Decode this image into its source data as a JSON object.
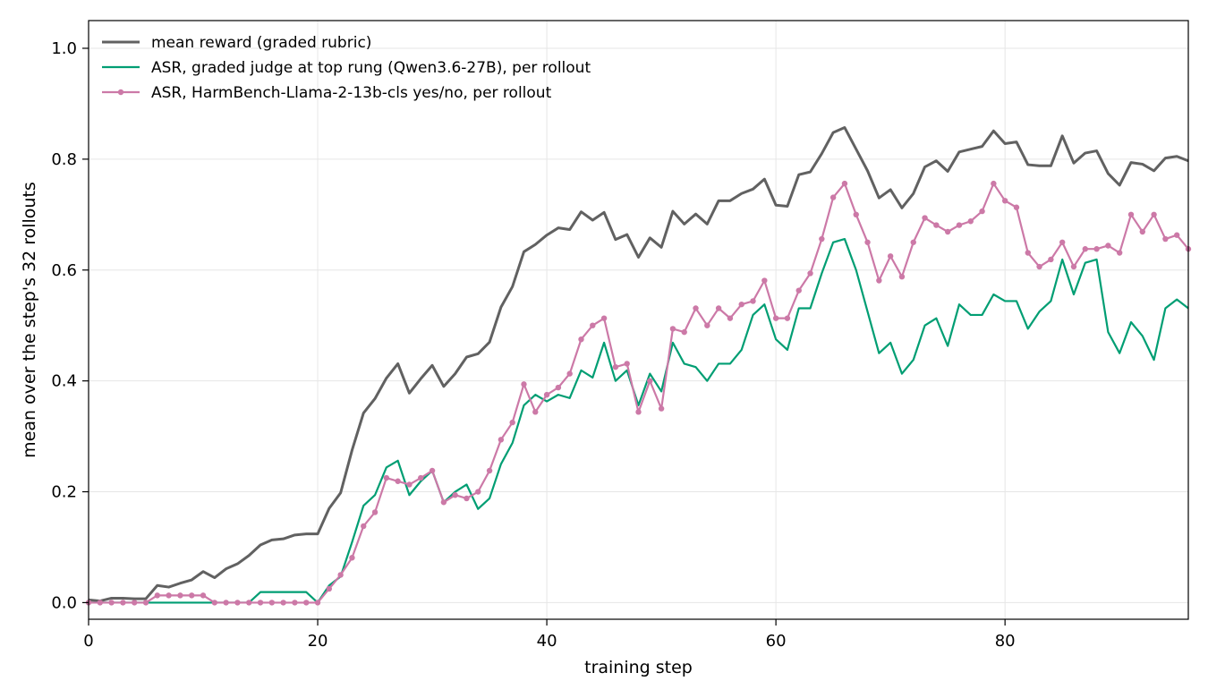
{
  "chart_data": {
    "type": "line",
    "title": "",
    "xlabel": "training step",
    "ylabel": "mean over the step's 32 rollouts",
    "xlim": [
      0,
      96
    ],
    "ylim": [
      -0.03,
      1.05
    ],
    "xticks": [
      0,
      20,
      40,
      60,
      80
    ],
    "yticks": [
      0.0,
      0.2,
      0.4,
      0.6,
      0.8,
      1.0
    ],
    "grid": true,
    "legend_position": "top-left",
    "series": [
      {
        "name": "mean reward (graded rubric)",
        "color": "#616161",
        "style": "solid",
        "marker": false,
        "x": [
          0,
          1,
          2,
          3,
          4,
          5,
          6,
          7,
          8,
          9,
          10,
          11,
          12,
          13,
          14,
          15,
          16,
          17,
          18,
          19,
          20,
          21,
          22,
          23,
          24,
          25,
          26,
          27,
          28,
          29,
          30,
          31,
          32,
          33,
          34,
          35,
          36,
          37,
          38,
          39,
          40,
          41,
          42,
          43,
          44,
          45,
          46,
          47,
          48,
          49,
          50,
          51,
          52,
          53,
          54,
          55,
          56,
          57,
          58,
          59,
          60,
          61,
          62,
          63,
          64,
          65,
          66,
          67,
          68,
          69,
          70,
          71,
          72,
          73,
          74,
          75,
          76,
          77,
          78,
          79,
          80,
          81,
          82,
          83,
          84,
          85,
          86,
          87,
          88,
          89,
          90,
          91,
          92,
          93,
          94,
          95,
          96
        ],
        "values": [
          0.005,
          0.003,
          0.008,
          0.008,
          0.007,
          0.007,
          0.031,
          0.028,
          0.035,
          0.041,
          0.056,
          0.045,
          0.061,
          0.07,
          0.085,
          0.104,
          0.113,
          0.115,
          0.122,
          0.124,
          0.124,
          0.17,
          0.198,
          0.275,
          0.342,
          0.368,
          0.405,
          0.431,
          0.378,
          0.404,
          0.428,
          0.39,
          0.413,
          0.443,
          0.449,
          0.47,
          0.533,
          0.57,
          0.633,
          0.646,
          0.663,
          0.676,
          0.673,
          0.705,
          0.69,
          0.704,
          0.655,
          0.664,
          0.623,
          0.658,
          0.641,
          0.706,
          0.683,
          0.701,
          0.683,
          0.725,
          0.725,
          0.738,
          0.746,
          0.764,
          0.717,
          0.715,
          0.772,
          0.777,
          0.81,
          0.848,
          0.857,
          0.818,
          0.779,
          0.73,
          0.745,
          0.712,
          0.738,
          0.786,
          0.797,
          0.778,
          0.813,
          0.818,
          0.823,
          0.851,
          0.828,
          0.831,
          0.79,
          0.788,
          0.788,
          0.842,
          0.793,
          0.811,
          0.815,
          0.774,
          0.753,
          0.794,
          0.791,
          0.779,
          0.802,
          0.805,
          0.797
        ]
      },
      {
        "name": "ASR, graded judge at top rung (Qwen3.6-27B), per rollout",
        "color": "#009e73",
        "style": "solid",
        "marker": false,
        "x": [
          0,
          1,
          2,
          3,
          4,
          5,
          6,
          7,
          8,
          9,
          10,
          11,
          12,
          13,
          14,
          15,
          16,
          17,
          18,
          19,
          20,
          21,
          22,
          23,
          24,
          25,
          26,
          27,
          28,
          29,
          30,
          31,
          32,
          33,
          34,
          35,
          36,
          37,
          38,
          39,
          40,
          41,
          42,
          43,
          44,
          45,
          46,
          47,
          48,
          49,
          50,
          51,
          52,
          53,
          54,
          55,
          56,
          57,
          58,
          59,
          60,
          61,
          62,
          63,
          64,
          65,
          66,
          67,
          68,
          69,
          70,
          71,
          72,
          73,
          74,
          75,
          76,
          77,
          78,
          79,
          80,
          81,
          82,
          83,
          84,
          85,
          86,
          87,
          88,
          89,
          90,
          91,
          92,
          93,
          94,
          95,
          96
        ],
        "values": [
          0.0,
          0.0,
          0.0,
          0.0,
          0.0,
          0.0,
          0.0,
          0.0,
          0.0,
          0.0,
          0.0,
          0.0,
          0.0,
          0.0,
          0.0,
          0.019,
          0.019,
          0.019,
          0.019,
          0.019,
          0.0,
          0.031,
          0.047,
          0.109,
          0.175,
          0.194,
          0.244,
          0.256,
          0.194,
          0.219,
          0.238,
          0.181,
          0.2,
          0.213,
          0.169,
          0.188,
          0.25,
          0.288,
          0.356,
          0.375,
          0.363,
          0.375,
          0.369,
          0.419,
          0.406,
          0.469,
          0.4,
          0.419,
          0.356,
          0.413,
          0.381,
          0.469,
          0.431,
          0.425,
          0.4,
          0.431,
          0.431,
          0.456,
          0.519,
          0.538,
          0.475,
          0.456,
          0.531,
          0.531,
          0.594,
          0.65,
          0.656,
          0.6,
          0.525,
          0.45,
          0.469,
          0.413,
          0.438,
          0.5,
          0.513,
          0.463,
          0.538,
          0.519,
          0.519,
          0.556,
          0.544,
          0.544,
          0.494,
          0.525,
          0.544,
          0.619,
          0.556,
          0.613,
          0.619,
          0.488,
          0.45,
          0.506,
          0.481,
          0.438,
          0.531,
          0.547,
          0.531
        ]
      },
      {
        "name": "ASR, HarmBench-Llama-2-13b-cls yes/no, per rollout",
        "color": "#cc79a7",
        "style": "solid",
        "marker": true,
        "x": [
          0,
          1,
          2,
          3,
          4,
          5,
          6,
          7,
          8,
          9,
          10,
          11,
          12,
          13,
          14,
          15,
          16,
          17,
          18,
          19,
          20,
          21,
          22,
          23,
          24,
          25,
          26,
          27,
          28,
          29,
          30,
          31,
          32,
          33,
          34,
          35,
          36,
          37,
          38,
          39,
          40,
          41,
          42,
          43,
          44,
          45,
          46,
          47,
          48,
          49,
          50,
          51,
          52,
          53,
          54,
          55,
          56,
          57,
          58,
          59,
          60,
          61,
          62,
          63,
          64,
          65,
          66,
          67,
          68,
          69,
          70,
          71,
          72,
          73,
          74,
          75,
          76,
          77,
          78,
          79,
          80,
          81,
          82,
          83,
          84,
          85,
          86,
          87,
          88,
          89,
          90,
          91,
          92,
          93,
          94,
          95,
          96
        ],
        "values": [
          0.0,
          0.0,
          0.0,
          0.0,
          0.0,
          0.0,
          0.013,
          0.013,
          0.013,
          0.013,
          0.013,
          0.0,
          0.0,
          0.0,
          0.0,
          0.0,
          0.0,
          0.0,
          0.0,
          0.0,
          0.0,
          0.025,
          0.05,
          0.081,
          0.138,
          0.163,
          0.225,
          0.219,
          0.213,
          0.225,
          0.238,
          0.181,
          0.194,
          0.188,
          0.2,
          0.238,
          0.294,
          0.325,
          0.394,
          0.344,
          0.375,
          0.388,
          0.413,
          0.475,
          0.5,
          0.513,
          0.425,
          0.431,
          0.344,
          0.4,
          0.35,
          0.494,
          0.488,
          0.531,
          0.5,
          0.531,
          0.513,
          0.538,
          0.544,
          0.581,
          0.513,
          0.513,
          0.563,
          0.594,
          0.656,
          0.731,
          0.756,
          0.7,
          0.65,
          0.581,
          0.625,
          0.588,
          0.65,
          0.694,
          0.681,
          0.669,
          0.681,
          0.688,
          0.706,
          0.756,
          0.725,
          0.713,
          0.631,
          0.606,
          0.619,
          0.65,
          0.606,
          0.638,
          0.638,
          0.644,
          0.631,
          0.7,
          0.669,
          0.7,
          0.656,
          0.663,
          0.638
        ]
      }
    ]
  }
}
